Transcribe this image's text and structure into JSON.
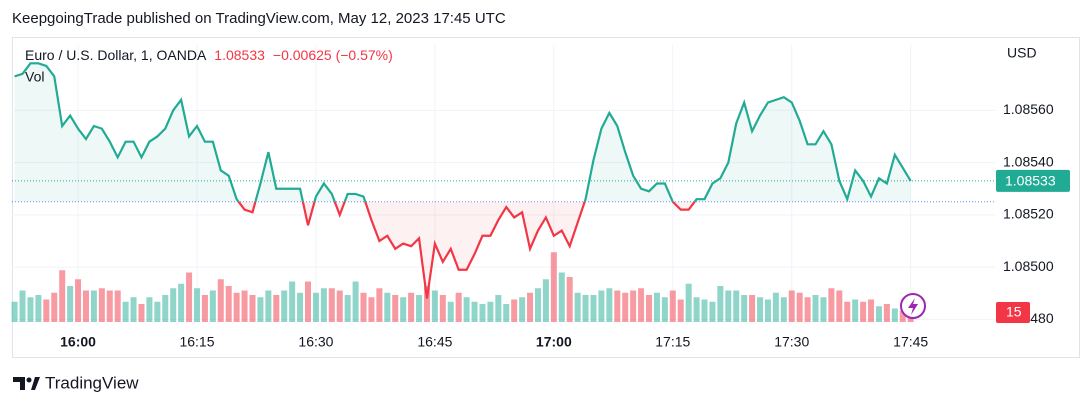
{
  "header": {
    "title": "KeepgoingTrade published on TradingView.com, May 12, 2023 17:45 UTC"
  },
  "footer": {
    "brand": "TradingView"
  },
  "chart_data": {
    "type": "baseline",
    "symbol": "Euro / U.S. Dollar, 1, OANDA",
    "change": "−0.00625 (−0.57%)",
    "currency": "USD",
    "volume_label": "Vol",
    "categories": [
      null,
      null,
      null,
      null,
      null,
      null,
      null,
      null,
      "16:00",
      null,
      null,
      null,
      null,
      null,
      null,
      null,
      null,
      null,
      null,
      null,
      null,
      null,
      null,
      "16:15",
      null,
      null,
      null,
      null,
      null,
      null,
      null,
      null,
      null,
      null,
      null,
      null,
      null,
      null,
      "16:30",
      null,
      null,
      null,
      null,
      null,
      null,
      null,
      null,
      null,
      null,
      null,
      null,
      null,
      null,
      "16:45",
      null,
      null,
      null,
      null,
      null,
      null,
      null,
      null,
      null,
      null,
      null,
      null,
      null,
      null,
      "17:00",
      null,
      null,
      null,
      null,
      null,
      null,
      null,
      null,
      null,
      null,
      null,
      null,
      null,
      null,
      "17:15",
      null,
      null,
      null,
      null,
      null,
      null,
      null,
      null,
      null,
      null,
      null,
      null,
      null,
      null,
      "17:30",
      null,
      null,
      null,
      null,
      null,
      null,
      null,
      null,
      null,
      null,
      null,
      null,
      null,
      null,
      "17:45"
    ],
    "baseline": 1.08525,
    "up_color": "#22ab94",
    "down_color": "#f23645",
    "series": [
      {
        "name": "EURUSD",
        "values": [
          1.08573,
          1.08574,
          1.08578,
          1.08578,
          1.08577,
          1.08573,
          1.08554,
          1.08558,
          1.08553,
          1.08549,
          1.08554,
          1.08553,
          1.08548,
          1.08542,
          1.08548,
          1.08548,
          1.08542,
          1.08548,
          1.0855,
          1.08553,
          1.0856,
          1.08564,
          1.0855,
          1.08554,
          1.08548,
          1.08548,
          1.08537,
          1.08535,
          1.08526,
          1.08522,
          1.08521,
          1.08532,
          1.08544,
          1.0853,
          1.0853,
          1.0853,
          1.0853,
          1.08516,
          1.08527,
          1.08532,
          1.08528,
          1.0852,
          1.08528,
          1.08528,
          1.08527,
          1.08518,
          1.0851,
          1.08512,
          1.08507,
          1.08509,
          1.08508,
          1.08511,
          1.08488,
          1.08509,
          1.08502,
          1.08507,
          1.08499,
          1.08499,
          1.08505,
          1.08512,
          1.08512,
          1.08518,
          1.08523,
          1.08519,
          1.08521,
          1.08507,
          1.08514,
          1.08519,
          1.08512,
          1.08514,
          1.08508,
          1.08517,
          1.08526,
          1.08541,
          1.08553,
          1.08559,
          1.08554,
          1.08544,
          1.08535,
          1.0853,
          1.08529,
          1.08532,
          1.08532,
          1.08525,
          1.08522,
          1.08522,
          1.08526,
          1.08526,
          1.08532,
          1.08534,
          1.0854,
          1.08555,
          1.08563,
          1.08552,
          1.08558,
          1.08563,
          1.08564,
          1.08565,
          1.08563,
          1.08556,
          1.08547,
          1.08547,
          1.08552,
          1.08547,
          1.08533,
          1.08526,
          1.08537,
          1.08533,
          1.08527,
          1.08534,
          1.08532,
          1.08543,
          1.08538,
          1.08533
        ]
      },
      {
        "name": "Vol",
        "axis": "volume",
        "values": [
          45,
          70,
          55,
          60,
          50,
          65,
          115,
          80,
          95,
          70,
          70,
          75,
          70,
          70,
          45,
          55,
          40,
          55,
          45,
          60,
          75,
          85,
          110,
          75,
          60,
          70,
          95,
          80,
          65,
          70,
          60,
          55,
          70,
          60,
          70,
          90,
          65,
          90,
          65,
          75,
          75,
          70,
          60,
          90,
          65,
          55,
          75,
          65,
          60,
          55,
          65,
          60,
          80,
          70,
          60,
          45,
          65,
          55,
          45,
          40,
          45,
          60,
          40,
          50,
          55,
          65,
          75,
          95,
          155,
          110,
          100,
          65,
          60,
          60,
          70,
          75,
          70,
          65,
          70,
          75,
          60,
          65,
          55,
          70,
          50,
          85,
          55,
          50,
          45,
          80,
          70,
          70,
          60,
          60,
          55,
          50,
          65,
          55,
          70,
          65,
          55,
          60,
          55,
          75,
          70,
          45,
          50,
          45,
          50,
          35,
          40,
          30,
          25,
          15
        ]
      }
    ],
    "ylim": [
      1.08479,
      1.08585
    ],
    "yticks": [
      {
        "value": 1.0856,
        "label": "1.08560"
      },
      {
        "value": 1.0854,
        "label": "1.08540"
      },
      {
        "value": 1.0852,
        "label": "1.08520"
      },
      {
        "value": 1.085,
        "label": "1.08500"
      },
      {
        "value": 1.0848,
        "label": "1.08480"
      }
    ],
    "volume_lim": [
      0,
      200
    ],
    "grid": true
  }
}
